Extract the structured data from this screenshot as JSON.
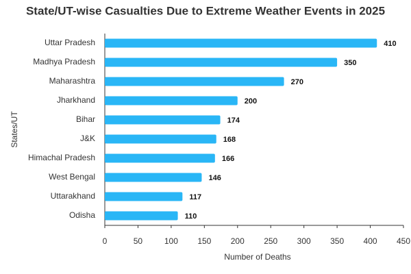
{
  "chart_data": {
    "type": "bar",
    "orientation": "horizontal",
    "title": "State/UT-wise Casualties Due to Extreme Weather Events in 2025",
    "x_label": "Number of Deaths",
    "y_label": "States/UT",
    "categories": [
      "Uttar Pradesh",
      "Madhya Pradesh",
      "Maharashtra",
      "Jharkhand",
      "Bihar",
      "J&K",
      "Himachal Pradesh",
      "West Bengal",
      "Uttarakhand",
      "Odisha"
    ],
    "values": [
      410,
      350,
      270,
      200,
      174,
      168,
      166,
      146,
      117,
      110
    ],
    "color": "#29b6f6",
    "xlim": [
      0,
      450
    ],
    "xticks": [
      0,
      50,
      100,
      150,
      200,
      250,
      300,
      350,
      400,
      450
    ],
    "grid": false
  }
}
